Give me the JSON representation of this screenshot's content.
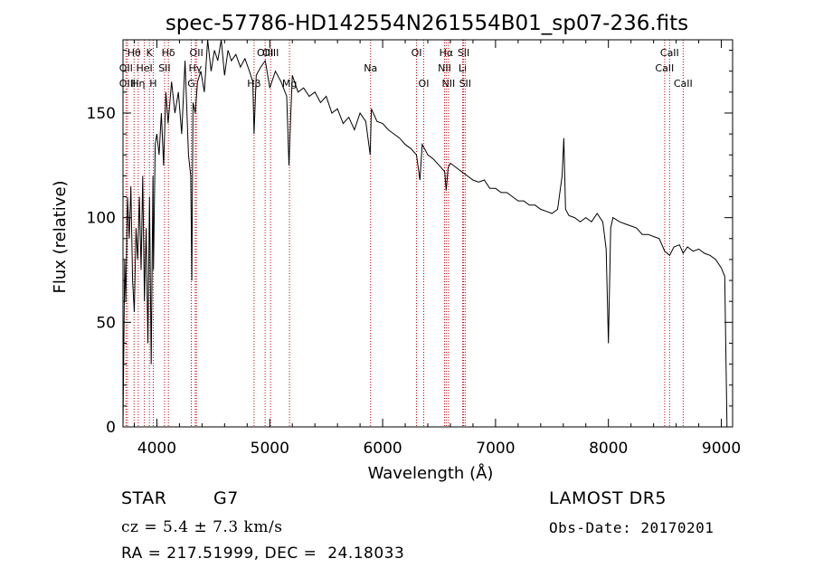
{
  "chart_data": {
    "type": "line",
    "title": "spec-57786-HD142554N261554B01_sp07-236.fits",
    "xlabel": "Wavelength (Å)",
    "ylabel": "Flux (relative)",
    "xlim": [
      3700,
      9100
    ],
    "ylim": [
      0,
      185
    ],
    "xticks": [
      4000,
      5000,
      6000,
      7000,
      8000,
      9000
    ],
    "yticks": [
      0,
      50,
      100,
      150
    ],
    "grid": false,
    "legend": "none",
    "colors": {
      "spectrum": "#000000",
      "lines": "#c00000"
    },
    "series": [
      {
        "values_x": [
          3700,
          3715,
          3725,
          3740,
          3755,
          3770,
          3785,
          3800,
          3815,
          3830,
          3845,
          3860,
          3875,
          3890,
          3905,
          3920,
          3935,
          3950,
          3965,
          3970,
          3985,
          4000,
          4020,
          4040,
          4060,
          4080,
          4100,
          4130,
          4160,
          4190,
          4220,
          4250,
          4280,
          4300,
          4310,
          4320,
          4340,
          4360,
          4390,
          4420,
          4450,
          4480,
          4510,
          4540,
          4570,
          4600,
          4630,
          4660,
          4700,
          4740,
          4780,
          4820,
          4850,
          4861,
          4880,
          4920,
          4960,
          5000,
          5050,
          5100,
          5150,
          5170,
          5183,
          5200,
          5250,
          5300,
          5350,
          5400,
          5450,
          5500,
          5550,
          5600,
          5650,
          5700,
          5750,
          5800,
          5850,
          5890,
          5900,
          5950,
          6000,
          6050,
          6100,
          6150,
          6200,
          6250,
          6300,
          6330,
          6350,
          6400,
          6450,
          6500,
          6550,
          6563,
          6580,
          6600,
          6650,
          6700,
          6750,
          6800,
          6850,
          6900,
          6950,
          7000,
          7050,
          7100,
          7150,
          7200,
          7250,
          7300,
          7350,
          7400,
          7450,
          7500,
          7550,
          7590,
          7605,
          7620,
          7650,
          7700,
          7750,
          7800,
          7850,
          7900,
          7950,
          7980,
          8000,
          8020,
          8040,
          8100,
          8150,
          8200,
          8250,
          8300,
          8350,
          8400,
          8450,
          8498,
          8542,
          8580,
          8630,
          8662,
          8700,
          8750,
          8800,
          8850,
          8900,
          8950,
          9000,
          9030,
          9050
        ],
        "values_y": [
          0,
          80,
          60,
          110,
          90,
          115,
          70,
          55,
          95,
          80,
          110,
          75,
          120,
          60,
          95,
          40,
          110,
          30,
          120,
          75,
          135,
          140,
          130,
          150,
          125,
          160,
          145,
          165,
          150,
          160,
          140,
          175,
          130,
          120,
          70,
          155,
          150,
          165,
          170,
          160,
          185,
          170,
          180,
          175,
          185,
          168,
          180,
          175,
          178,
          172,
          176,
          170,
          165,
          140,
          168,
          172,
          175,
          162,
          170,
          165,
          158,
          125,
          145,
          168,
          160,
          162,
          158,
          160,
          155,
          158,
          150,
          152,
          145,
          148,
          142,
          150,
          146,
          130,
          152,
          146,
          145,
          142,
          140,
          138,
          135,
          133,
          130,
          118,
          135,
          130,
          128,
          125,
          122,
          113,
          124,
          126,
          124,
          122,
          120,
          118,
          117,
          118,
          114,
          114,
          112,
          112,
          110,
          108,
          108,
          106,
          106,
          104,
          103,
          102,
          104,
          120,
          138,
          104,
          101,
          100,
          98,
          100,
          98,
          102,
          98,
          85,
          40,
          95,
          100,
          98,
          97,
          96,
          95,
          92,
          92,
          91,
          90,
          84,
          82,
          86,
          87,
          83,
          86,
          84,
          85,
          83,
          82,
          80,
          76,
          72,
          0
        ]
      }
    ],
    "spectral_lines": [
      {
        "label": "Hθ",
        "wavelength": 3798,
        "row": 1
      },
      {
        "label": "OII",
        "wavelength": 3727,
        "row": 2
      },
      {
        "label": "OIII",
        "wavelength": 3740,
        "row": 3
      },
      {
        "label": "Hη",
        "wavelength": 3835,
        "row": 3
      },
      {
        "label": "HeI",
        "wavelength": 3889,
        "row": 2
      },
      {
        "label": "K",
        "wavelength": 3934,
        "row": 1
      },
      {
        "label": "SII",
        "wavelength": 4068,
        "row": 2
      },
      {
        "label": "H",
        "wavelength": 3968,
        "row": 3
      },
      {
        "label": "Hδ",
        "wavelength": 4102,
        "row": 1
      },
      {
        "label": "OII",
        "wavelength": 4350,
        "row": 1
      },
      {
        "label": "Hγ",
        "wavelength": 4340,
        "row": 2
      },
      {
        "label": "G",
        "wavelength": 4305,
        "row": 3
      },
      {
        "label": "Hβ",
        "wavelength": 4861,
        "row": 3
      },
      {
        "label": "OIII",
        "wavelength": 4959,
        "row": 1
      },
      {
        "label": "OIII",
        "wavelength": 5007,
        "row": 1
      },
      {
        "label": "Mg",
        "wavelength": 5175,
        "row": 3
      },
      {
        "label": "Na",
        "wavelength": 5893,
        "row": 2
      },
      {
        "label": "OI",
        "wavelength": 6300,
        "row": 1
      },
      {
        "label": "OI",
        "wavelength": 6364,
        "row": 3
      },
      {
        "label": "Hα",
        "wavelength": 6563,
        "row": 1
      },
      {
        "label": "NII",
        "wavelength": 6548,
        "row": 2
      },
      {
        "label": "NII",
        "wavelength": 6583,
        "row": 3
      },
      {
        "label": "SII",
        "wavelength": 6717,
        "row": 1
      },
      {
        "label": "Li",
        "wavelength": 6708,
        "row": 2
      },
      {
        "label": "SII",
        "wavelength": 6731,
        "row": 3
      },
      {
        "label": "CaII",
        "wavelength": 8542,
        "row": 1
      },
      {
        "label": "CaII",
        "wavelength": 8498,
        "row": 2
      },
      {
        "label": "CaII",
        "wavelength": 8662,
        "row": 3
      }
    ]
  },
  "info": {
    "object_class": "STAR",
    "subclass": "G7",
    "release": "LAMOST DR5",
    "cz": "cz = 5.4 ± 7.3 km/s",
    "obs_date": "Obs-Date: 20170201",
    "coords": "RA = 217.51999, DEC =  24.18033"
  }
}
